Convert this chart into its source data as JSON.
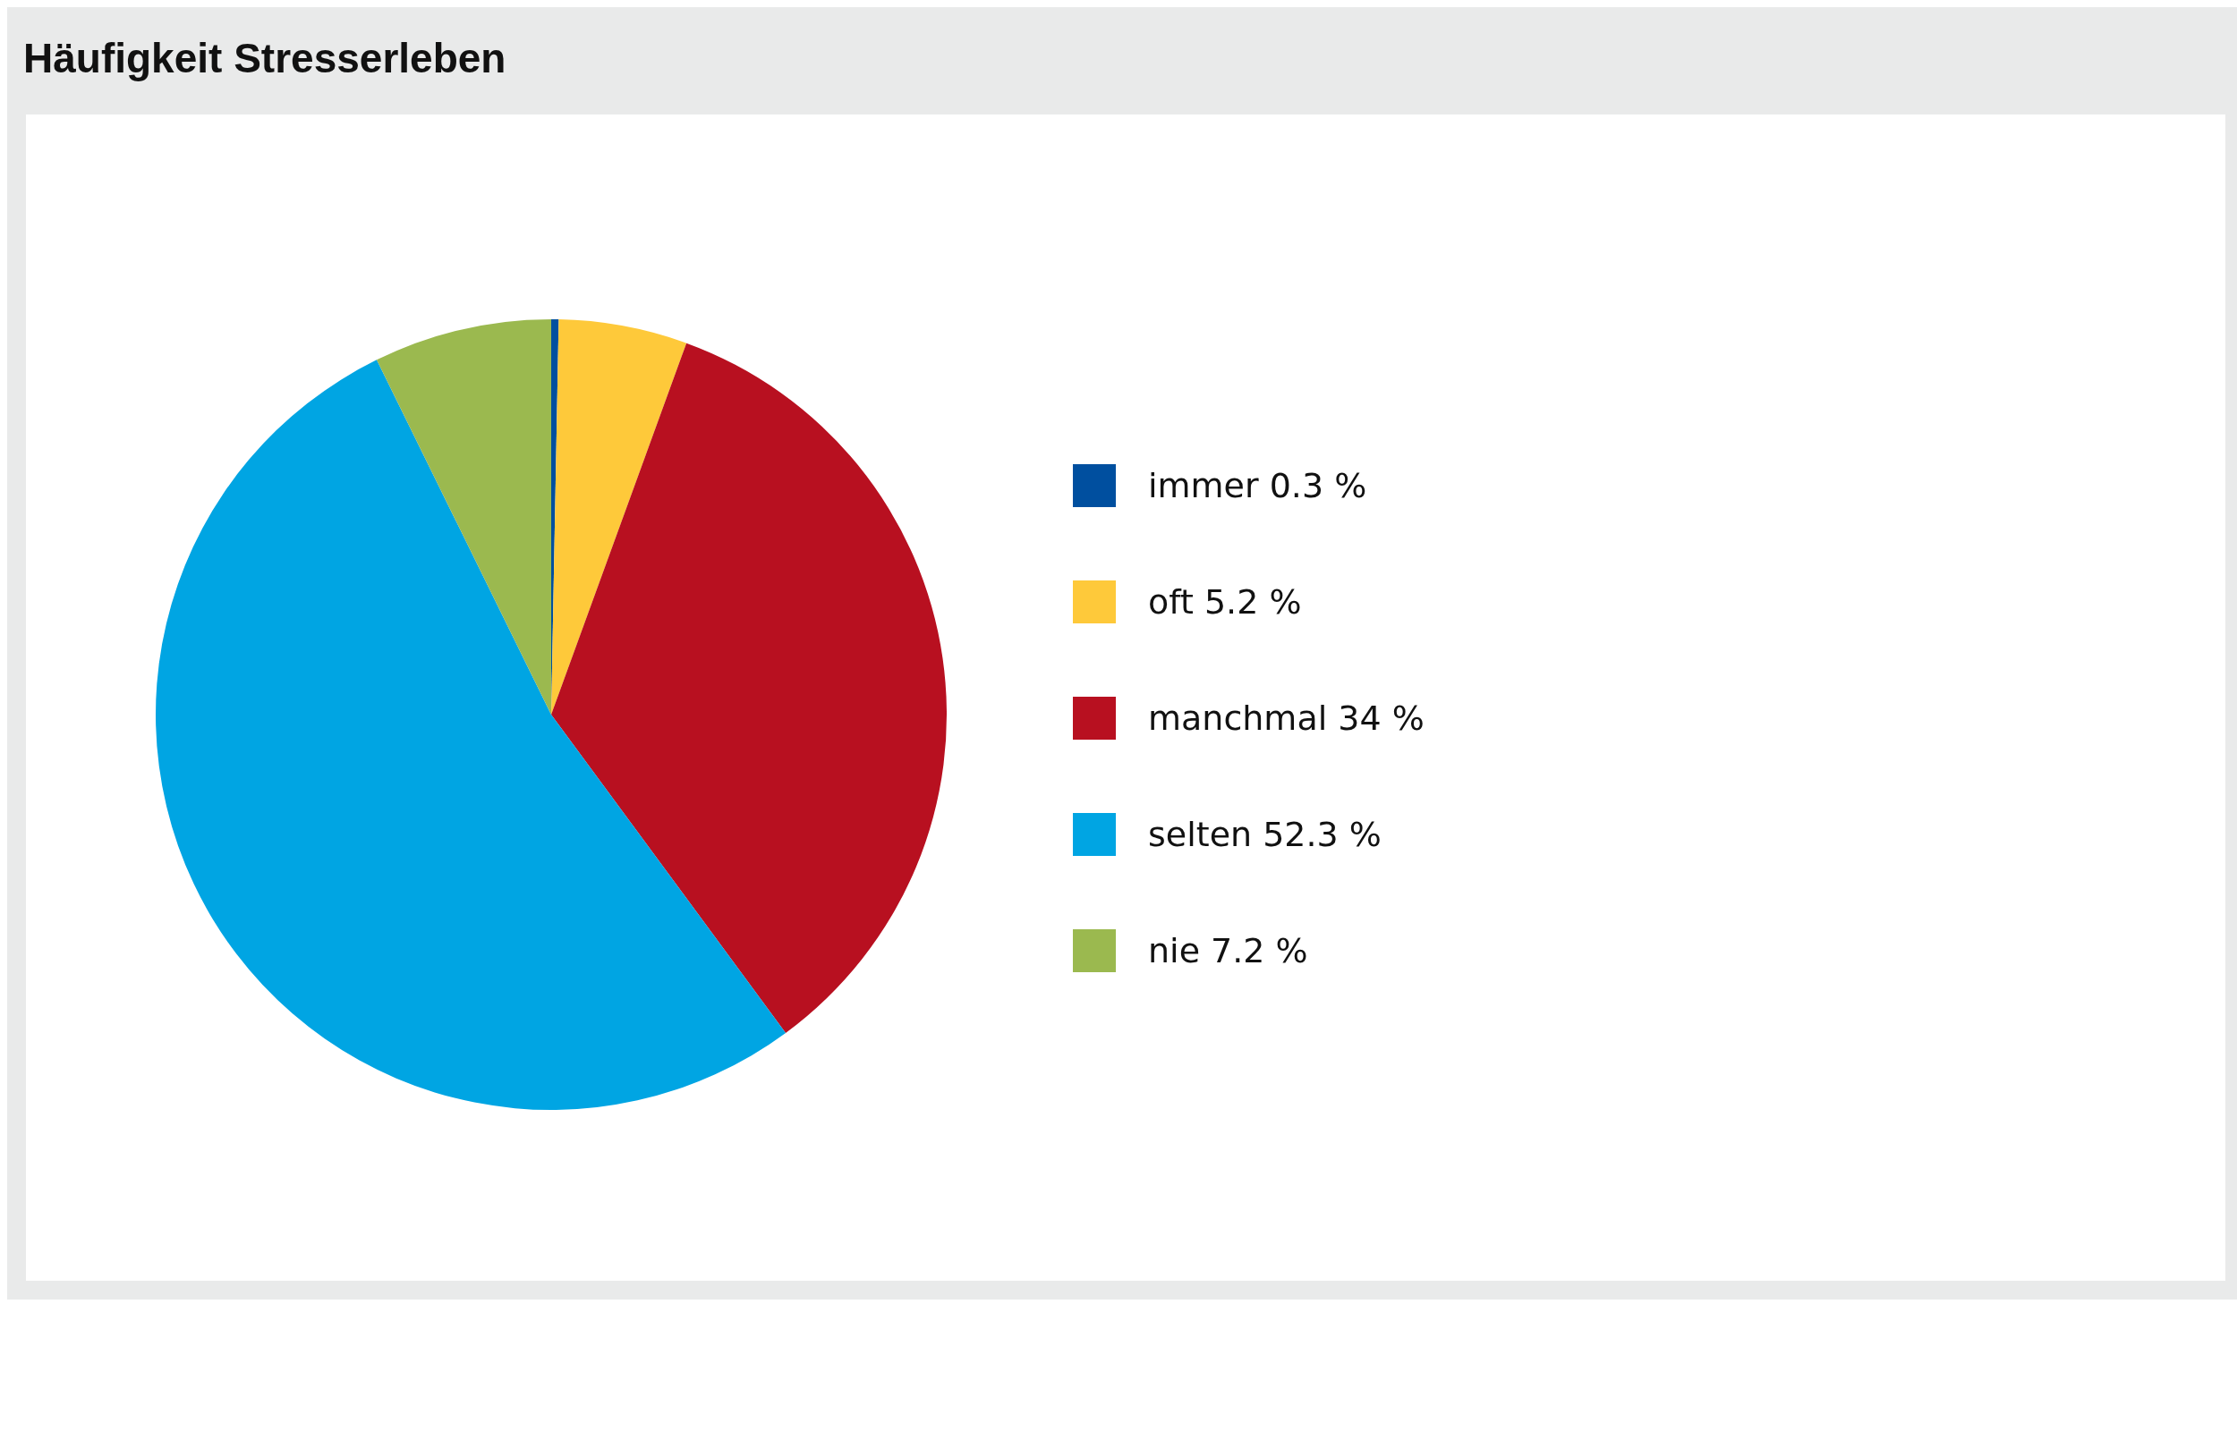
{
  "chart_data": {
    "type": "pie",
    "title": "Häufigkeit Stresserleben",
    "categories": [
      "immer",
      "oft",
      "manchmal",
      "selten",
      "nie"
    ],
    "values": [
      0.3,
      5.2,
      34,
      52.3,
      7.2
    ],
    "value_labels": [
      "0.3 %",
      "5.2 %",
      "34 %",
      "52.3 %",
      "7.2 %"
    ],
    "colors": [
      "#004f9f",
      "#fec93a",
      "#b81020",
      "#00a5e3",
      "#9bb94f"
    ],
    "legend": "right"
  }
}
